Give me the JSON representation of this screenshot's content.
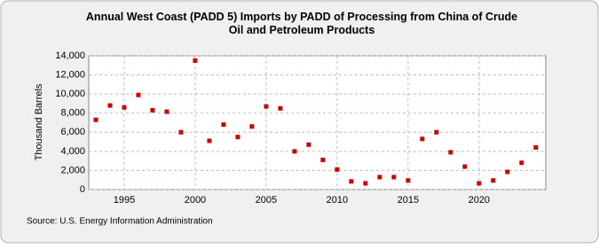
{
  "chart_data": {
    "type": "scatter",
    "title": "Annual West Coast (PADD 5) Imports by PADD of Processing from China of Crude Oil and Petroleum Products",
    "y_label": "Thousand Barrels",
    "source": "Source: U.S. Energy Information Administration",
    "x": [
      1993,
      1994,
      1995,
      1996,
      1997,
      1998,
      1999,
      2000,
      2001,
      2002,
      2003,
      2004,
      2005,
      2006,
      2007,
      2008,
      2009,
      2010,
      2011,
      2012,
      2013,
      2014,
      2015,
      2016,
      2017,
      2018,
      2019,
      2020,
      2021,
      2022,
      2023,
      2024
    ],
    "values": [
      7300,
      8800,
      8600,
      9900,
      8300,
      8150,
      6000,
      13500,
      5100,
      6800,
      5500,
      6600,
      8700,
      8500,
      4000,
      4700,
      3100,
      2100,
      850,
      650,
      1300,
      1300,
      950,
      5300,
      6000,
      3900,
      2400,
      650,
      950,
      1850,
      2800,
      4400
    ],
    "color": "#cc0000",
    "xlim": [
      1992.5,
      2024.7
    ],
    "xticks": [
      1995,
      2000,
      2005,
      2010,
      2015,
      2020
    ],
    "ylim": [
      0,
      14000
    ],
    "yticks": [
      0,
      {
        "value": 2000,
        "label": "2,000"
      },
      {
        "value": 4000,
        "label": "4,000"
      },
      {
        "value": 6000,
        "label": "6,000"
      },
      {
        "value": 8000,
        "label": "8,000"
      },
      {
        "value": 10000,
        "label": "10,000"
      },
      {
        "value": 12000,
        "label": "12,000"
      },
      {
        "value": 14000,
        "label": "14,000"
      }
    ],
    "grid": true
  }
}
